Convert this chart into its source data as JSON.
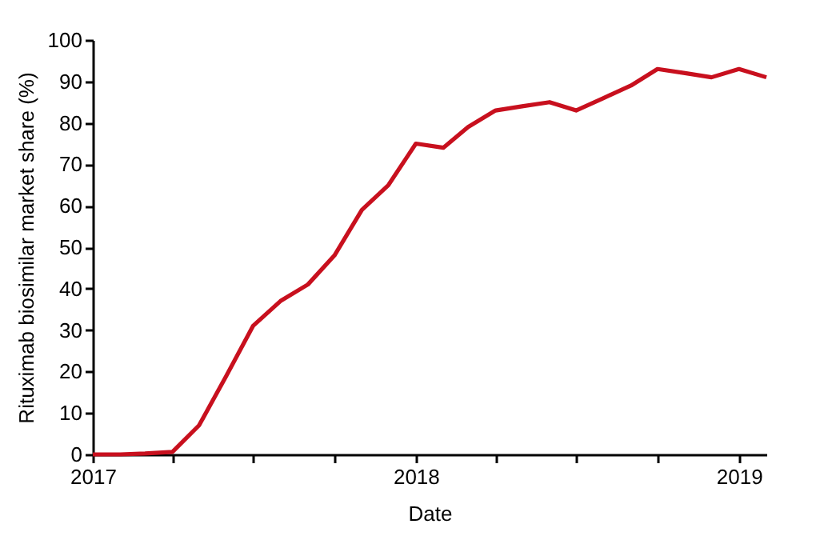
{
  "chart_data": {
    "type": "line",
    "xlabel": "Date",
    "ylabel": "Rituximab biosimilar market share (%)",
    "x": [
      "2017-01",
      "2017-02",
      "2017-03",
      "2017-04",
      "2017-05",
      "2017-06",
      "2017-07",
      "2017-08",
      "2017-09",
      "2017-10",
      "2017-11",
      "2017-12",
      "2018-01",
      "2018-02",
      "2018-03",
      "2018-04",
      "2018-05",
      "2018-06",
      "2018-07",
      "2018-08",
      "2018-09",
      "2018-10",
      "2018-11",
      "2018-12",
      "2019-01",
      "2019-02"
    ],
    "series": [
      {
        "color": "#c8101e",
        "values": [
          0,
          0,
          0.2,
          0.6,
          7,
          19,
          31,
          37,
          41,
          48,
          59,
          65,
          75,
          74,
          79,
          83,
          84,
          85,
          83,
          86,
          89,
          93,
          92,
          91,
          93,
          91
        ]
      }
    ],
    "xlim": [
      "2017-01",
      "2019-02"
    ],
    "xticks": [
      {
        "value": "2017-01",
        "label": "2017"
      },
      {
        "value": "2017-04",
        "label": null
      },
      {
        "value": "2017-07",
        "label": null
      },
      {
        "value": "2017-10",
        "label": null
      },
      {
        "value": "2018-01",
        "label": "2018"
      },
      {
        "value": "2018-04",
        "label": null
      },
      {
        "value": "2018-07",
        "label": null
      },
      {
        "value": "2018-10",
        "label": null
      },
      {
        "value": "2019-01",
        "label": "2019"
      }
    ],
    "ylim": [
      0,
      100
    ],
    "yticks": [
      0,
      10,
      20,
      30,
      40,
      50,
      60,
      70,
      80,
      90,
      100
    ],
    "grid": false,
    "legend": false,
    "marker": "none",
    "line_style": "solid"
  }
}
